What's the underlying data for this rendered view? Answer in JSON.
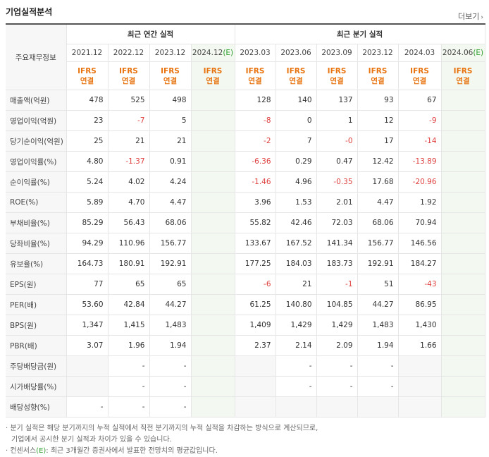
{
  "header": {
    "title": "기업실적분석",
    "more_label": "더보기",
    "more_arrow": "›"
  },
  "table": {
    "row_header": "주요재무정보",
    "groups": {
      "annual": "최근 연간 실적",
      "quarterly": "최근 분기 실적"
    },
    "periods": [
      "2021.12",
      "2022.12",
      "2023.12",
      "2024.12",
      "2023.03",
      "2023.06",
      "2023.09",
      "2023.12",
      "2024.03",
      "2024.06"
    ],
    "est_label": "(E)",
    "ifrs_line1": "IFRS",
    "ifrs_line2": "연결",
    "rows": [
      {
        "label": "매출액(억원)",
        "values": [
          "478",
          "525",
          "498",
          "",
          "128",
          "140",
          "137",
          "93",
          "67",
          ""
        ]
      },
      {
        "label": "영업이익(억원)",
        "values": [
          "23",
          "-7",
          "5",
          "",
          "-8",
          "0",
          "1",
          "12",
          "-9",
          ""
        ]
      },
      {
        "label": "당기순이익(억원)",
        "values": [
          "25",
          "21",
          "21",
          "",
          "-2",
          "7",
          "-0",
          "17",
          "-14",
          ""
        ]
      },
      {
        "label": "영업이익률(%)",
        "values": [
          "4.80",
          "-1.37",
          "0.91",
          "",
          "-6.36",
          "0.29",
          "0.47",
          "12.42",
          "-13.89",
          ""
        ]
      },
      {
        "label": "순이익률(%)",
        "values": [
          "5.24",
          "4.02",
          "4.24",
          "",
          "-1.46",
          "4.96",
          "-0.35",
          "17.68",
          "-20.96",
          ""
        ]
      },
      {
        "label": "ROE(%)",
        "values": [
          "5.89",
          "4.70",
          "4.47",
          "",
          "3.96",
          "1.53",
          "2.01",
          "4.47",
          "1.92",
          ""
        ]
      },
      {
        "label": "부채비율(%)",
        "values": [
          "85.29",
          "56.43",
          "68.06",
          "",
          "55.82",
          "42.46",
          "72.03",
          "68.06",
          "70.94",
          ""
        ]
      },
      {
        "label": "당좌비율(%)",
        "values": [
          "94.29",
          "110.96",
          "156.77",
          "",
          "133.67",
          "167.52",
          "141.34",
          "156.77",
          "146.56",
          ""
        ]
      },
      {
        "label": "유보율(%)",
        "values": [
          "164.73",
          "180.91",
          "192.91",
          "",
          "177.25",
          "184.03",
          "183.73",
          "192.91",
          "184.27",
          ""
        ]
      },
      {
        "label": "EPS(원)",
        "values": [
          "77",
          "65",
          "65",
          "",
          "-6",
          "21",
          "-1",
          "51",
          "-43",
          ""
        ]
      },
      {
        "label": "PER(배)",
        "values": [
          "53.60",
          "42.84",
          "44.27",
          "",
          "61.25",
          "140.80",
          "104.85",
          "44.27",
          "86.95",
          ""
        ]
      },
      {
        "label": "BPS(원)",
        "values": [
          "1,347",
          "1,415",
          "1,483",
          "",
          "1,409",
          "1,429",
          "1,429",
          "1,483",
          "1,430",
          ""
        ]
      },
      {
        "label": "PBR(배)",
        "values": [
          "3.07",
          "1.96",
          "1.94",
          "",
          "2.37",
          "2.14",
          "2.09",
          "1.94",
          "1.66",
          ""
        ]
      },
      {
        "label": "주당배당금(원)",
        "values": [
          "",
          "-",
          "-",
          "",
          "",
          "-",
          "-",
          "-",
          "",
          ""
        ]
      },
      {
        "label": "시가배당률(%)",
        "values": [
          "",
          "-",
          "-",
          "",
          "",
          "-",
          "-",
          "-",
          "",
          ""
        ]
      },
      {
        "label": "배당성향(%)",
        "values": [
          "-",
          "-",
          "-",
          "",
          "",
          "",
          "",
          "",
          "",
          ""
        ]
      }
    ]
  },
  "notes": {
    "line1": "· 분기 실적은 해당 분기까지의 누적 실적에서 직전 분기까지의 누적 실적을 차감하는 방식으로 계산되므로,",
    "line2": "기업에서 공시한 분기 실적과 차이가 있을 수 있습니다.",
    "line3_pre": "· 컨센서스",
    "line3_e": "(E)",
    "line3_post": ": 최근 3개월간 증권사에서 발표한 전망치의 평균값입니다."
  },
  "colors": {
    "negative": "#e04040",
    "ifrs": "#e8730e",
    "estimate_bg": "#f3f9f0",
    "estimate_mark": "#2d9e2d"
  }
}
